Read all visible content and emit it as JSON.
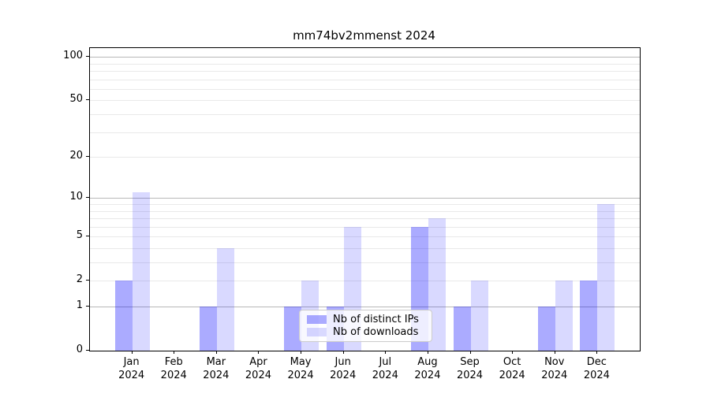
{
  "chart_data": {
    "type": "bar",
    "title": "mm74bv2mmenst 2024",
    "categories": [
      "Jan",
      "Feb",
      "Mar",
      "Apr",
      "May",
      "Jun",
      "Jul",
      "Aug",
      "Sep",
      "Oct",
      "Nov",
      "Dec"
    ],
    "year_label": "2024",
    "series": [
      {
        "name": "Nb of distinct IPs",
        "values": [
          2,
          0,
          1,
          0,
          1,
          1,
          0,
          6,
          1,
          0,
          1,
          2
        ],
        "color": "rgba(0,0,255,0.33)"
      },
      {
        "name": "Nb of downloads",
        "values": [
          11,
          0,
          4,
          0,
          2,
          6,
          0,
          7,
          2,
          0,
          2,
          9
        ],
        "color": "rgba(0,0,255,0.15)"
      }
    ],
    "y_axis": {
      "scale": "log10(1+x)",
      "tick_values": [
        0,
        1,
        2,
        5,
        10,
        20,
        50,
        100
      ],
      "major_grid_values": [
        1,
        10,
        100
      ],
      "minor_grid_values": [
        2,
        3,
        4,
        5,
        6,
        7,
        8,
        9,
        20,
        30,
        40,
        50,
        60,
        70,
        80,
        90
      ],
      "ylim": [
        0,
        115
      ]
    },
    "xlabel": "",
    "ylabel": "",
    "grid": "both",
    "legend": {
      "position": "lower center"
    },
    "colors": {
      "axis": "#000000",
      "major_grid": "#b8b8b8",
      "minor_grid": "#e9e9e9",
      "background": "#ffffff"
    }
  }
}
